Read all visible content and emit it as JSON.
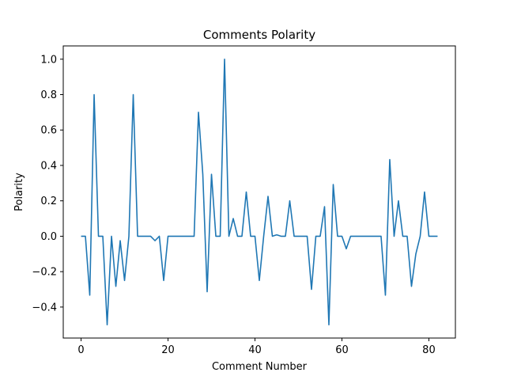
{
  "chart_data": {
    "type": "line",
    "title": "Comments Polarity",
    "xlabel": "Comment Number",
    "ylabel": "Polarity",
    "xlim": [
      -4.1,
      86.1
    ],
    "ylim": [
      -0.575,
      1.075
    ],
    "xticks": [
      0,
      20,
      40,
      60,
      80
    ],
    "xtick_labels": [
      "0",
      "20",
      "40",
      "60",
      "80"
    ],
    "yticks": [
      -0.4,
      -0.2,
      0.0,
      0.2,
      0.4,
      0.6,
      0.8,
      1.0
    ],
    "ytick_labels": [
      "−0.4",
      "−0.2",
      "0.0",
      "0.2",
      "0.4",
      "0.6",
      "0.8",
      "1.0"
    ],
    "grid": false,
    "series": [
      {
        "color": "#1f77b4",
        "x": [
          0,
          1,
          2,
          3,
          4,
          5,
          6,
          7,
          8,
          9,
          10,
          11,
          12,
          13,
          14,
          15,
          16,
          17,
          18,
          19,
          20,
          21,
          22,
          23,
          24,
          25,
          26,
          27,
          28,
          29,
          30,
          31,
          32,
          33,
          34,
          35,
          36,
          37,
          38,
          39,
          40,
          41,
          42,
          43,
          44,
          45,
          46,
          47,
          48,
          49,
          50,
          51,
          52,
          53,
          54,
          55,
          56,
          57,
          58,
          59,
          60,
          61,
          62,
          63,
          64,
          65,
          66,
          67,
          68,
          69,
          70,
          71,
          72,
          73,
          74,
          75,
          76,
          77,
          78,
          79,
          80,
          81,
          82
        ],
        "y": [
          0,
          0,
          -0.333,
          0.8,
          0,
          0,
          -0.5,
          0,
          -0.283,
          -0.025,
          -0.25,
          0,
          0.8,
          0,
          0,
          0,
          0,
          -0.025,
          0,
          -0.25,
          0,
          0,
          0,
          0,
          0,
          0,
          0,
          0.7,
          0.35,
          -0.313,
          0.35,
          0,
          0,
          1.0,
          0,
          0.1,
          0,
          0,
          0.25,
          0,
          0,
          -0.25,
          0,
          0.225,
          0,
          0.008,
          0,
          0,
          0.2,
          0,
          0,
          0,
          0,
          -0.3,
          0,
          0,
          0.167,
          -0.5,
          0.292,
          0,
          0,
          -0.071,
          0,
          0,
          0,
          0,
          0,
          0,
          0,
          0,
          -0.333,
          0.433,
          0,
          0.2,
          0,
          0,
          -0.283,
          -0.1,
          0,
          0.25,
          0,
          0,
          0
        ]
      }
    ]
  }
}
